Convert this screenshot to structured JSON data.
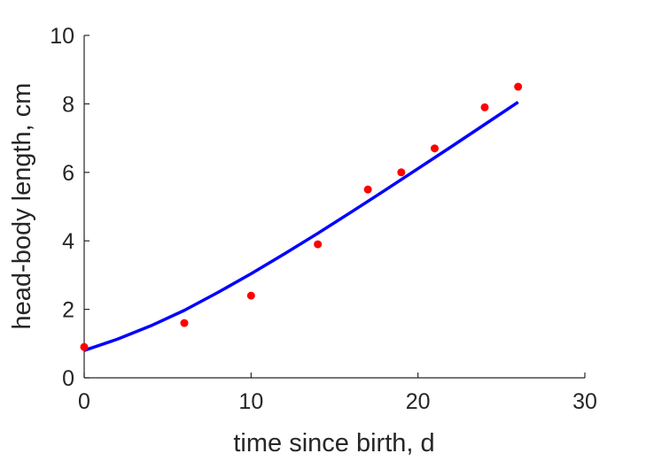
{
  "chart_data": {
    "type": "scatter",
    "title": "",
    "xlabel": "time since birth, d",
    "ylabel": "head-body length, cm",
    "xlim": [
      0,
      30
    ],
    "ylim": [
      0,
      10
    ],
    "xticks": [
      0,
      10,
      20,
      30
    ],
    "yticks": [
      0,
      2,
      4,
      6,
      8,
      10
    ],
    "xtick_labels": [
      "0",
      "10",
      "20",
      "30"
    ],
    "ytick_labels": [
      "0",
      "2",
      "4",
      "6",
      "8",
      "10"
    ],
    "grid": false,
    "legend": "none",
    "series": [
      {
        "kind": "scatter",
        "color": "#ff0000",
        "x": [
          0,
          6,
          10,
          14,
          17,
          19,
          21,
          24,
          26
        ],
        "y": [
          0.9,
          1.6,
          2.4,
          3.9,
          5.5,
          6.0,
          6.7,
          7.9,
          8.5
        ]
      },
      {
        "kind": "line",
        "color": "#0000ff",
        "x": [
          0,
          2,
          4,
          6,
          8,
          10,
          12,
          14,
          16,
          18,
          20,
          22,
          24,
          26
        ],
        "y": [
          0.8,
          1.13,
          1.52,
          1.97,
          2.49,
          3.04,
          3.62,
          4.22,
          4.84,
          5.47,
          6.11,
          6.75,
          7.4,
          8.05
        ]
      }
    ]
  }
}
